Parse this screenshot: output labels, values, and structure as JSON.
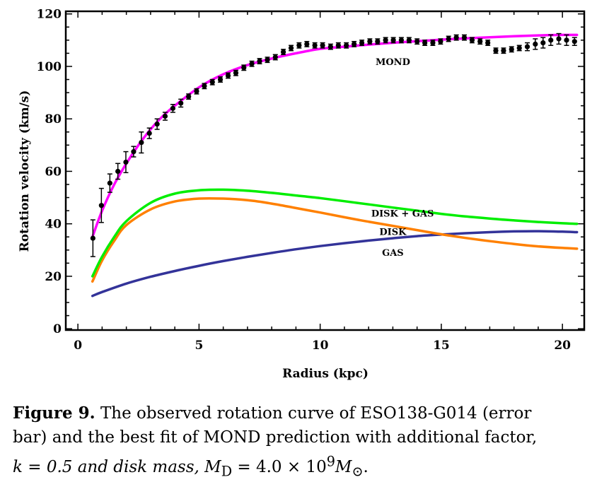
{
  "chart_data": {
    "type": "scatter",
    "xlabel": "Radius (kpc)",
    "ylabel": "Rotation velocity (km/s)",
    "xlim": [
      -0.5,
      20.9
    ],
    "ylim": [
      -0.5,
      121
    ],
    "xticks": [
      0,
      5,
      10,
      15,
      20
    ],
    "yticks": [
      0,
      20,
      40,
      60,
      80,
      100,
      120
    ],
    "xtick_labels": [
      "0",
      "5",
      "10",
      "15",
      "20"
    ],
    "ytick_labels": [
      "0",
      "20",
      "40",
      "60",
      "80",
      "100",
      "120"
    ],
    "grid": false,
    "observed": {
      "x": [
        0.62,
        0.97,
        1.32,
        1.65,
        1.98,
        2.3,
        2.62,
        2.95,
        3.27,
        3.6,
        3.92,
        4.25,
        4.57,
        4.9,
        5.22,
        5.55,
        5.88,
        6.2,
        6.52,
        6.85,
        7.18,
        7.5,
        7.82,
        8.15,
        8.48,
        8.8,
        9.13,
        9.45,
        9.78,
        10.1,
        10.43,
        10.75,
        11.08,
        11.4,
        11.72,
        12.05,
        12.37,
        12.7,
        13.02,
        13.35,
        13.67,
        14.0,
        14.32,
        14.65,
        14.97,
        15.3,
        15.62,
        15.95,
        16.27,
        16.6,
        16.92,
        17.25,
        17.57,
        17.9,
        18.22,
        18.55,
        18.88,
        19.2,
        19.52,
        19.85,
        20.17,
        20.5
      ],
      "y": [
        34.5,
        47,
        55.5,
        60,
        63.5,
        67.5,
        71,
        74.5,
        78,
        81,
        84,
        86,
        88.5,
        90.5,
        92.5,
        94,
        95,
        96.5,
        97.5,
        99.5,
        101,
        102,
        102.5,
        103.5,
        105.5,
        107,
        108,
        108.5,
        108,
        108,
        107.5,
        108,
        108,
        108.5,
        109,
        109.5,
        109.5,
        110,
        110,
        110,
        110,
        109.5,
        109,
        109,
        109.5,
        110.5,
        111,
        111,
        110,
        109.5,
        109,
        106,
        106,
        106.5,
        107,
        107.5,
        108.5,
        109,
        110,
        110.5,
        110,
        109.5
      ],
      "err": [
        7,
        6.5,
        3.5,
        3,
        4,
        2,
        4,
        2,
        2,
        1.5,
        1.5,
        1.5,
        1,
        1,
        1,
        1,
        1,
        1,
        1,
        1,
        1,
        1,
        1,
        1,
        1,
        1,
        1,
        1,
        1,
        1,
        1,
        1,
        1,
        1,
        1,
        1,
        1,
        1,
        1,
        1,
        1,
        1,
        1,
        1,
        1,
        1,
        1,
        1,
        1,
        1,
        1,
        1,
        1,
        1,
        1,
        1.5,
        2,
        2,
        2,
        2,
        2,
        1.5
      ]
    },
    "series": [
      {
        "name": "MOND",
        "color": "#ff00ff",
        "x": [
          0.6,
          1,
          1.5,
          2,
          2.5,
          3,
          3.5,
          4,
          5,
          6,
          7,
          8,
          9,
          10,
          11,
          12,
          13,
          14,
          15,
          16,
          17,
          18,
          19,
          20,
          20.6
        ],
        "y": [
          35,
          45,
          55,
          63,
          70,
          76,
          81,
          85,
          92,
          97,
          100.5,
          103,
          105,
          106.7,
          107.5,
          108.3,
          109,
          109.6,
          110.2,
          110.7,
          111.1,
          111.5,
          111.8,
          112,
          112
        ]
      },
      {
        "name": "DISK + GAS",
        "color": "#00ee00",
        "x": [
          0.6,
          1,
          1.5,
          2,
          3,
          4,
          5,
          6,
          7,
          8,
          9,
          10,
          11,
          12,
          13,
          14,
          15,
          16,
          17,
          18,
          19,
          20,
          20.6
        ],
        "y": [
          20,
          27.5,
          35,
          41,
          48,
          51.5,
          52.8,
          53,
          52.6,
          51.8,
          50.8,
          49.8,
          48.6,
          47.4,
          46.2,
          45,
          43.8,
          42.8,
          42,
          41.3,
          40.7,
          40.2,
          40
        ]
      },
      {
        "name": "DISK",
        "color": "#ff8000",
        "x": [
          0.6,
          1,
          1.5,
          2,
          3,
          4,
          5,
          6,
          7,
          8,
          9,
          10,
          11,
          12,
          13,
          14,
          15,
          16,
          17,
          18,
          19,
          20,
          20.6
        ],
        "y": [
          18,
          26,
          33.5,
          39.5,
          45.5,
          48.5,
          49.6,
          49.6,
          49,
          47.7,
          46,
          44.3,
          42.5,
          40.8,
          39.2,
          37.6,
          36,
          34.6,
          33.4,
          32.3,
          31.4,
          30.8,
          30.5
        ]
      },
      {
        "name": "GAS",
        "color": "#333399",
        "x": [
          0.6,
          1,
          2,
          3,
          4,
          5,
          6,
          7,
          8,
          9,
          10,
          11,
          12,
          13,
          14,
          15,
          16,
          17,
          18,
          19,
          20,
          20.6
        ],
        "y": [
          12.5,
          14,
          17.2,
          19.8,
          22,
          24,
          25.8,
          27.4,
          28.9,
          30.3,
          31.5,
          32.6,
          33.6,
          34.5,
          35.3,
          35.9,
          36.4,
          36.8,
          37.1,
          37.2,
          37,
          36.8
        ]
      }
    ],
    "annotations": [
      "MOND",
      "DISK + GAS",
      "DISK",
      "GAS"
    ]
  },
  "caption": {
    "figure_label": "Figure 9.",
    "text_line1": "The observed rotation curve of ESO138-G014 (error",
    "text_line2": "bar) and the best fit of MOND prediction with additional factor,",
    "text_line3": "k = 0.5 and disk mass, M",
    "text_sub": "D",
    "text_mid": " = 4.0 × 10",
    "text_sup": "9",
    "text_end": "M",
    "text_sun": "⊙",
    "text_period": "."
  }
}
